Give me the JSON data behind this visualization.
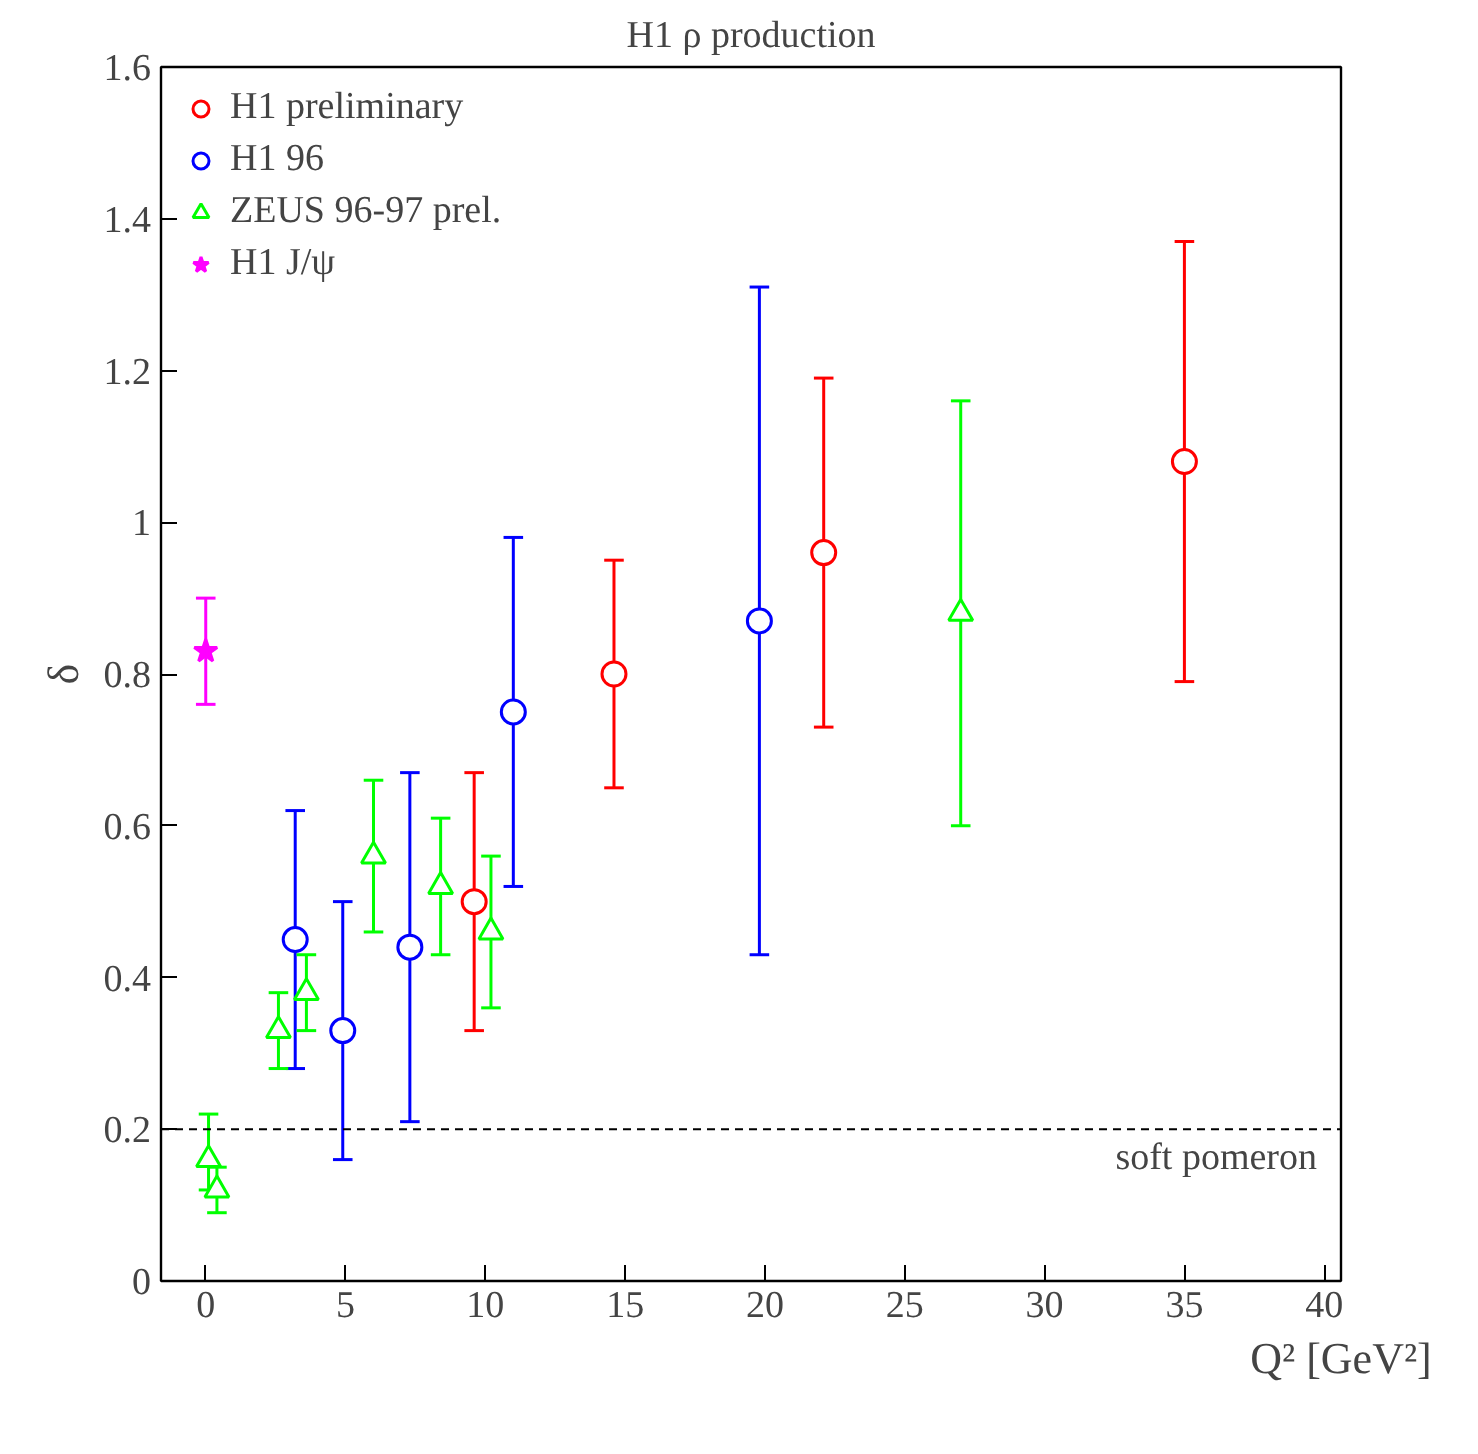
{
  "chart_data": {
    "type": "scatter",
    "title": "H1 ρ production",
    "xlabel": "Q² [GeV²]",
    "ylabel": "δ",
    "xlim": [
      -1.6,
      40.6
    ],
    "ylim": [
      0,
      1.6
    ],
    "xticks": [
      0,
      5,
      10,
      15,
      20,
      25,
      30,
      35,
      40
    ],
    "yticks": [
      0,
      0.2,
      0.4,
      0.6,
      0.8,
      1,
      1.2,
      1.4,
      1.6
    ],
    "grid": false,
    "legend": "top left",
    "ref_lines": [
      {
        "axis": "y",
        "value": 0.2,
        "label": "soft pomeron",
        "color": "#000000",
        "line_style": "dashed"
      }
    ],
    "series": [
      {
        "name": "H1 preliminary",
        "color": "#ff0000",
        "marker": "circle",
        "x": [
          9.6,
          14.6,
          22.1,
          35
        ],
        "values": [
          0.5,
          0.8,
          0.96,
          1.08
        ],
        "errors": [
          [
            0.33,
            0.67
          ],
          [
            0.65,
            0.95
          ],
          [
            0.73,
            1.19
          ],
          [
            0.79,
            1.37
          ]
        ]
      },
      {
        "name": "H1 96",
        "color": "#0000ff",
        "marker": "circle",
        "x": [
          3.2,
          4.9,
          7.3,
          11.0,
          19.8
        ],
        "values": [
          0.45,
          0.33,
          0.44,
          0.75,
          0.87
        ],
        "errors": [
          [
            0.28,
            0.62
          ],
          [
            0.16,
            0.5
          ],
          [
            0.21,
            0.67
          ],
          [
            0.52,
            0.98
          ],
          [
            0.43,
            1.31
          ]
        ]
      },
      {
        "name": "ZEUS 96-97 prel.",
        "color": "#00ff00",
        "marker": "triangle",
        "x": [
          0.1,
          0.4,
          2.6,
          3.6,
          6.0,
          8.4,
          10.2,
          27
        ],
        "values": [
          0.16,
          0.12,
          0.33,
          0.38,
          0.56,
          0.52,
          0.46,
          0.88
        ],
        "errors": [
          [
            0.12,
            0.22
          ],
          [
            0.09,
            0.15
          ],
          [
            0.28,
            0.38
          ],
          [
            0.33,
            0.43
          ],
          [
            0.46,
            0.66
          ],
          [
            0.43,
            0.61
          ],
          [
            0.36,
            0.56
          ],
          [
            0.6,
            1.16
          ]
        ]
      },
      {
        "name": "H1 J/ψ",
        "color": "#ff00ff",
        "marker": "star",
        "x": [
          0
        ],
        "values": [
          0.83
        ],
        "errors": [
          [
            0.76,
            0.9
          ]
        ]
      }
    ]
  }
}
